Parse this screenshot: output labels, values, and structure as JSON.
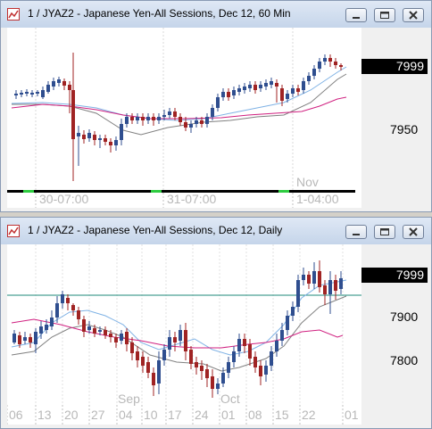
{
  "top_window": {
    "title": "1 / JYAZ2 - Japanese Yen-All Sessions, Dec 12, 60 Min",
    "price_box": "7999",
    "price_label": "7950",
    "month_label": "Nov",
    "time_labels": [
      "30-07:00",
      "31-07:00",
      "1-04:00"
    ]
  },
  "bottom_window": {
    "title": "1 / JYAZ2 - Japanese Yen-All Sessions, Dec 12, Daily",
    "price_box": "7999",
    "price_labels": [
      "7900",
      "7800"
    ],
    "month_labels": [
      "Sep",
      "Oct"
    ],
    "date_labels": [
      "06",
      "13",
      "20",
      "27",
      "04",
      "10",
      "17",
      "24",
      "01",
      "08",
      "15",
      "22",
      "01"
    ]
  },
  "colors": {
    "up_candle": "#2f4e8f",
    "down_candle": "#a02323",
    "ma_fast": "#7fb2e5",
    "ma_mid": "#808080",
    "ma_slow": "#d02080",
    "session_bar": "#000000",
    "session_marker": "#2ecc40",
    "horizontal_line": "#1e8a7a"
  },
  "icons": {
    "app": "chart-app-icon",
    "minimize": "minimize-icon",
    "maximize": "maximize-icon",
    "close": "close-icon"
  }
}
